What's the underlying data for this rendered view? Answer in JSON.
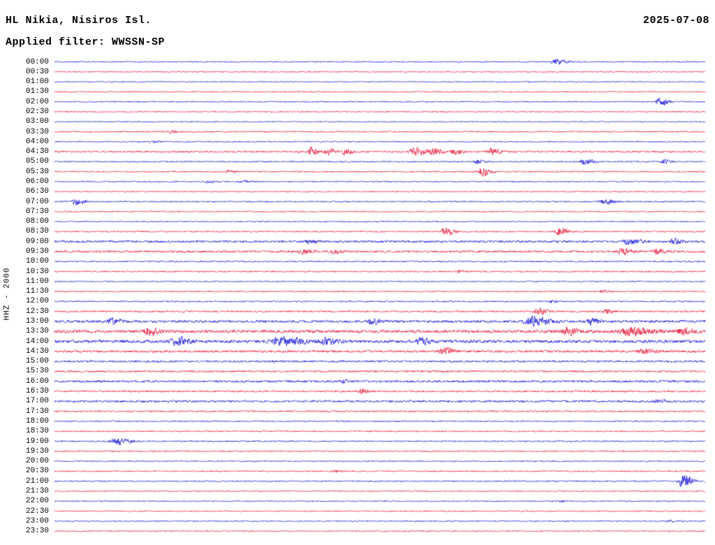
{
  "header": {
    "station": "HL Nikia, Nisiros Isl.",
    "date": "2025-07-08",
    "filter": "Applied filter: WWSSN-SP"
  },
  "axis": {
    "channel_label": "HHZ - 2000"
  },
  "colors": {
    "blue": "#0b0bd6",
    "red": "#e30b2e"
  },
  "chart_data": {
    "type": "line",
    "title": "24-hour helicorder seismogram, station HL Nikia (Nisiros Island), channel HHZ, WWSSN-SP filtered, 2025-07-08",
    "row_duration_minutes": 30,
    "ev_format": "[position 0-1 along row, burst amplitude px, envelope width as fraction of row]",
    "rows": [
      {
        "t": "00:00",
        "c": "b",
        "n": 0.5,
        "ev": [
          [
            0.77,
            2.0,
            0.012
          ]
        ]
      },
      {
        "t": "00:30",
        "c": "r",
        "n": 0.5,
        "ev": []
      },
      {
        "t": "01:00",
        "c": "b",
        "n": 0.45,
        "ev": []
      },
      {
        "t": "01:30",
        "c": "r",
        "n": 0.5,
        "ev": []
      },
      {
        "t": "02:00",
        "c": "b",
        "n": 0.5,
        "ev": [
          [
            0.93,
            3.0,
            0.01
          ]
        ]
      },
      {
        "t": "02:30",
        "c": "r",
        "n": 0.5,
        "ev": []
      },
      {
        "t": "03:00",
        "c": "b",
        "n": 0.45,
        "ev": []
      },
      {
        "t": "03:30",
        "c": "r",
        "n": 0.55,
        "ev": [
          [
            0.18,
            1.0,
            0.01
          ]
        ]
      },
      {
        "t": "04:00",
        "c": "b",
        "n": 0.5,
        "ev": [
          [
            0.15,
            0.8,
            0.008
          ]
        ]
      },
      {
        "t": "04:30",
        "c": "r",
        "n": 0.7,
        "ev": [
          [
            0.394,
            2.8,
            0.008
          ],
          [
            0.42,
            2.8,
            0.008
          ],
          [
            0.446,
            2.2,
            0.008
          ],
          [
            0.553,
            3.6,
            0.012
          ],
          [
            0.581,
            3.0,
            0.01
          ],
          [
            0.613,
            2.0,
            0.01
          ],
          [
            0.67,
            2.4,
            0.012
          ]
        ]
      },
      {
        "t": "05:00",
        "c": "b",
        "n": 0.55,
        "ev": [
          [
            0.649,
            1.5,
            0.008
          ],
          [
            0.814,
            2.4,
            0.01
          ],
          [
            0.936,
            1.6,
            0.008
          ]
        ]
      },
      {
        "t": "05:30",
        "c": "r",
        "n": 0.55,
        "ev": [
          [
            0.267,
            1.0,
            0.008
          ],
          [
            0.656,
            3.2,
            0.01
          ]
        ]
      },
      {
        "t": "06:00",
        "c": "b",
        "n": 0.5,
        "ev": [
          [
            0.235,
            0.9,
            0.008
          ],
          [
            0.289,
            0.9,
            0.008
          ]
        ]
      },
      {
        "t": "06:30",
        "c": "r",
        "n": 0.5,
        "ev": []
      },
      {
        "t": "07:00",
        "c": "b",
        "n": 0.55,
        "ev": [
          [
            0.032,
            2.4,
            0.01
          ],
          [
            0.845,
            2.0,
            0.012
          ]
        ]
      },
      {
        "t": "07:30",
        "c": "r",
        "n": 0.5,
        "ev": []
      },
      {
        "t": "08:00",
        "c": "b",
        "n": 0.5,
        "ev": []
      },
      {
        "t": "08:30",
        "c": "r",
        "n": 0.6,
        "ev": [
          [
            0.6,
            3.2,
            0.01
          ],
          [
            0.775,
            2.8,
            0.01
          ]
        ]
      },
      {
        "t": "09:00",
        "c": "b",
        "n": 0.9,
        "ev": [
          [
            0.39,
            1.2,
            0.01
          ],
          [
            0.882,
            1.8,
            0.015
          ],
          [
            0.952,
            1.8,
            0.01
          ]
        ]
      },
      {
        "t": "09:30",
        "c": "r",
        "n": 0.85,
        "ev": [
          [
            0.382,
            1.8,
            0.01
          ],
          [
            0.431,
            1.4,
            0.008
          ],
          [
            0.872,
            2.2,
            0.012
          ],
          [
            0.925,
            1.6,
            0.01
          ]
        ]
      },
      {
        "t": "10:00",
        "c": "b",
        "n": 0.6,
        "ev": []
      },
      {
        "t": "10:30",
        "c": "r",
        "n": 0.6,
        "ev": [
          [
            0.62,
            1.0,
            0.008
          ]
        ]
      },
      {
        "t": "11:00",
        "c": "b",
        "n": 0.5,
        "ev": []
      },
      {
        "t": "11:30",
        "c": "r",
        "n": 0.55,
        "ev": [
          [
            0.842,
            0.9,
            0.008
          ]
        ]
      },
      {
        "t": "12:00",
        "c": "b",
        "n": 0.6,
        "ev": [
          [
            0.765,
            1.0,
            0.008
          ]
        ]
      },
      {
        "t": "12:30",
        "c": "r",
        "n": 0.7,
        "ev": [
          [
            0.743,
            2.4,
            0.01
          ],
          [
            0.848,
            1.4,
            0.008
          ]
        ]
      },
      {
        "t": "13:00",
        "c": "b",
        "n": 1.0,
        "ev": [
          [
            0.086,
            2.2,
            0.012
          ],
          [
            0.487,
            1.8,
            0.01
          ],
          [
            0.733,
            3.2,
            0.02
          ],
          [
            0.824,
            2.0,
            0.01
          ]
        ]
      },
      {
        "t": "13:30",
        "c": "r",
        "n": 1.2,
        "ev": [
          [
            0.144,
            2.6,
            0.012
          ],
          [
            0.786,
            2.6,
            0.012
          ],
          [
            0.882,
            2.6,
            0.025
          ],
          [
            0.963,
            2.4,
            0.012
          ]
        ]
      },
      {
        "t": "14:00",
        "c": "b",
        "n": 1.2,
        "ev": [
          [
            0.187,
            2.8,
            0.015
          ],
          [
            0.348,
            2.6,
            0.03
          ],
          [
            0.417,
            2.6,
            0.012
          ],
          [
            0.561,
            2.4,
            0.012
          ]
        ]
      },
      {
        "t": "14:30",
        "c": "r",
        "n": 0.9,
        "ev": [
          [
            0.596,
            3.2,
            0.012
          ],
          [
            0.904,
            1.6,
            0.015
          ]
        ]
      },
      {
        "t": "15:00",
        "c": "b",
        "n": 0.8,
        "ev": []
      },
      {
        "t": "15:30",
        "c": "r",
        "n": 0.75,
        "ev": []
      },
      {
        "t": "16:00",
        "c": "b",
        "n": 0.9,
        "ev": [
          [
            0.444,
            1.0,
            0.01
          ]
        ]
      },
      {
        "t": "16:30",
        "c": "r",
        "n": 0.7,
        "ev": [
          [
            0.471,
            1.8,
            0.008
          ]
        ]
      },
      {
        "t": "17:00",
        "c": "b",
        "n": 0.85,
        "ev": [
          [
            0.925,
            1.2,
            0.01
          ]
        ]
      },
      {
        "t": "17:30",
        "c": "r",
        "n": 0.65,
        "ev": []
      },
      {
        "t": "18:00",
        "c": "b",
        "n": 0.55,
        "ev": []
      },
      {
        "t": "18:30",
        "c": "r",
        "n": 0.55,
        "ev": []
      },
      {
        "t": "19:00",
        "c": "b",
        "n": 0.55,
        "ev": [
          [
            0.096,
            2.8,
            0.015
          ]
        ]
      },
      {
        "t": "19:30",
        "c": "r",
        "n": 0.55,
        "ev": []
      },
      {
        "t": "20:00",
        "c": "b",
        "n": 0.5,
        "ev": []
      },
      {
        "t": "20:30",
        "c": "r",
        "n": 0.55,
        "ev": [
          [
            0.433,
            0.8,
            0.008
          ]
        ]
      },
      {
        "t": "21:00",
        "c": "b",
        "n": 0.55,
        "ev": [
          [
            0.965,
            5.0,
            0.01
          ]
        ]
      },
      {
        "t": "21:30",
        "c": "r",
        "n": 0.5,
        "ev": []
      },
      {
        "t": "22:00",
        "c": "b",
        "n": 0.5,
        "ev": [
          [
            0.775,
            0.8,
            0.006
          ]
        ]
      },
      {
        "t": "22:30",
        "c": "r",
        "n": 0.5,
        "ev": []
      },
      {
        "t": "23:00",
        "c": "b",
        "n": 0.5,
        "ev": [
          [
            0.944,
            0.9,
            0.006
          ]
        ]
      },
      {
        "t": "23:30",
        "c": "r",
        "n": 0.5,
        "ev": []
      }
    ]
  }
}
